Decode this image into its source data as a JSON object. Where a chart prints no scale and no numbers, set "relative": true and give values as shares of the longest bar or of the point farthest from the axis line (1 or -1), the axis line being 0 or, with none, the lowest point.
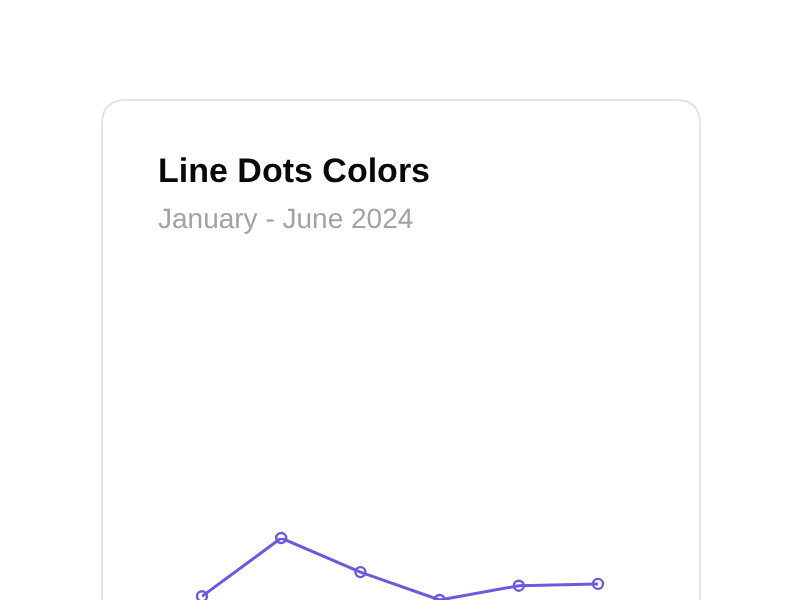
{
  "chart_data": {
    "type": "line",
    "title": "Line Dots Colors",
    "subtitle": "January - June 2024",
    "relative": true,
    "categories": [
      null,
      null,
      null,
      null,
      null,
      null
    ],
    "series": [
      {
        "color": "#6a5ae0",
        "values": [
          0.06,
          1,
          0.45,
          0,
          0.23,
          0.26
        ]
      }
    ],
    "marker": "circle"
  }
}
